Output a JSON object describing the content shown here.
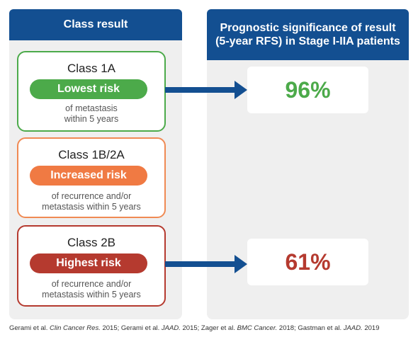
{
  "left_panel": {
    "header": "Class result",
    "cards": [
      {
        "title": "Class 1A",
        "pill": "Lowest risk",
        "desc_line1": "of metastasis",
        "desc_line2": "within 5 years",
        "color": "#4caa4a"
      },
      {
        "title": "Class 1B/2A",
        "pill": "Increased risk",
        "desc_line1": "of recurrence and/or",
        "desc_line2": "metastasis within 5 years",
        "color": "#f07a43"
      },
      {
        "title": "Class 2B",
        "pill": "Highest risk",
        "desc_line1": "of recurrence and/or",
        "desc_line2": "metastasis within 5 years",
        "color": "#b53a2f"
      }
    ]
  },
  "right_panel": {
    "header": "Prognostic significance of result (5-year RFS) in Stage I-IIA patients",
    "results": [
      {
        "value": "96%",
        "color": "#4caa4a"
      },
      {
        "value": "61%",
        "color": "#b53a2f"
      }
    ]
  },
  "footer": {
    "p1": "Gerami et al. ",
    "j1": "Clin Cancer Res.",
    "p2": " 2015; Gerami et al. ",
    "j2": "JAAD.",
    "p3": " 2015; Zager et al. ",
    "j3": "BMC Cancer.",
    "p4": " 2018; Gastman et al. ",
    "j4": "JAAD.",
    "p5": " 2019"
  },
  "colors": {
    "header_bg": "#134f91",
    "arrow": "#134f91",
    "panel_bg": "#efefef"
  }
}
